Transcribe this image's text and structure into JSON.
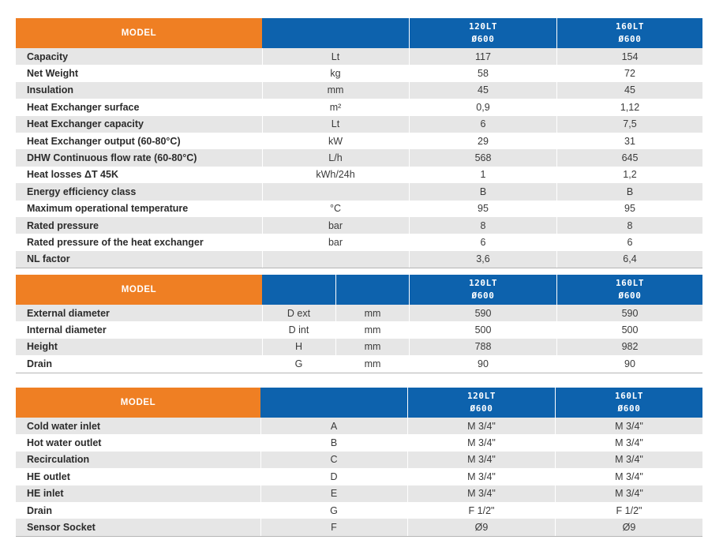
{
  "colors": {
    "model_header": "#ef7f23",
    "column_header": "#0d62ad",
    "alt_row": "#e6e6e6"
  },
  "table1": {
    "model_label": "MODEL",
    "columns": [
      {
        "line1": "120LT",
        "line2": "Ø600"
      },
      {
        "line1": "160LT",
        "line2": "Ø600"
      }
    ],
    "rows": [
      {
        "label": "Capacity",
        "unit": "Lt",
        "v1": "117",
        "v2": "154"
      },
      {
        "label": "Net Weight",
        "unit": "kg",
        "v1": "58",
        "v2": "72"
      },
      {
        "label": "Insulation",
        "unit": "mm",
        "v1": "45",
        "v2": "45"
      },
      {
        "label": "Heat Exchanger surface",
        "unit": "m²",
        "v1": "0,9",
        "v2": "1,12"
      },
      {
        "label": "Heat Exchanger capacity",
        "unit": "Lt",
        "v1": "6",
        "v2": "7,5"
      },
      {
        "label": "Heat Exchanger output (60-80°C)",
        "unit": "kW",
        "v1": "29",
        "v2": "31"
      },
      {
        "label": "DHW Continuous flow rate (60-80°C)",
        "unit": "L/h",
        "v1": "568",
        "v2": "645"
      },
      {
        "label": "Heat losses ΔT 45K",
        "unit": "kWh/24h",
        "v1": "1",
        "v2": "1,2"
      },
      {
        "label": "Energy efficiency class",
        "unit": "",
        "v1": "B",
        "v2": "B"
      },
      {
        "label": "Maximum operational temperature",
        "unit": "°C",
        "v1": "95",
        "v2": "95"
      },
      {
        "label": "Rated pressure",
        "unit": "bar",
        "v1": "8",
        "v2": "8"
      },
      {
        "label": "Rated pressure of the heat exchanger",
        "unit": "bar",
        "v1": "6",
        "v2": "6"
      },
      {
        "label": "NL factor",
        "unit": "",
        "v1": "3,6",
        "v2": "6,4"
      }
    ]
  },
  "table2": {
    "model_label": "MODEL",
    "columns": [
      {
        "line1": "120LT",
        "line2": "Ø600"
      },
      {
        "line1": "160LT",
        "line2": "Ø600"
      }
    ],
    "rows": [
      {
        "label": "External diameter",
        "symbol": "D ext",
        "unit": "mm",
        "v1": "590",
        "v2": "590"
      },
      {
        "label": "Internal diameter",
        "symbol": "D int",
        "unit": "mm",
        "v1": "500",
        "v2": "500"
      },
      {
        "label": "Height",
        "symbol": "H",
        "unit": "mm",
        "v1": "788",
        "v2": "982"
      },
      {
        "label": "Drain",
        "symbol": "G",
        "unit": "mm",
        "v1": "90",
        "v2": "90"
      }
    ]
  },
  "table3": {
    "model_label": "MODEL",
    "columns": [
      {
        "line1": "120LT",
        "line2": "Ø600"
      },
      {
        "line1": "160LT",
        "line2": "Ø600"
      }
    ],
    "rows": [
      {
        "label": "Cold water inlet",
        "symbol": "A",
        "v1": "M 3/4\"",
        "v2": "M 3/4\""
      },
      {
        "label": "Hot water outlet",
        "symbol": "B",
        "v1": "M 3/4\"",
        "v2": "M 3/4\""
      },
      {
        "label": "Recirculation",
        "symbol": "C",
        "v1": "M 3/4\"",
        "v2": "M 3/4\""
      },
      {
        "label": "HE outlet",
        "symbol": "D",
        "v1": "M 3/4\"",
        "v2": "M 3/4\""
      },
      {
        "label": "HE inlet",
        "symbol": "E",
        "v1": "M 3/4\"",
        "v2": "M 3/4\""
      },
      {
        "label": "Drain",
        "symbol": "G",
        "v1": "F 1/2\"",
        "v2": "F 1/2\""
      },
      {
        "label": "Sensor Socket",
        "symbol": "F",
        "v1": "Ø9",
        "v2": "Ø9"
      }
    ]
  }
}
